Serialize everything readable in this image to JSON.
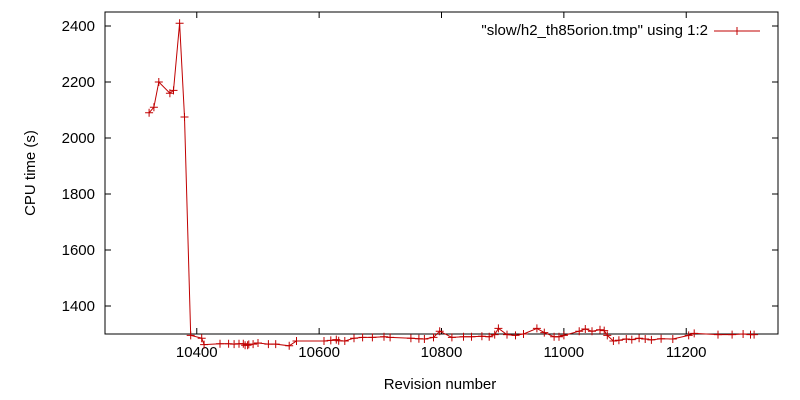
{
  "chart_data": {
    "type": "line",
    "xlabel": "Revision number",
    "ylabel": "CPU time (s)",
    "xlim": [
      10250,
      11350
    ],
    "ylim": [
      1300,
      2450
    ],
    "xticks": [
      10400,
      10600,
      10800,
      11000,
      11200
    ],
    "yticks": [
      1400,
      1600,
      1800,
      2000,
      2200,
      2400
    ],
    "grid": false,
    "legend_position": "top-right",
    "series": [
      {
        "name": "\"slow/h2_th85orion.tmp\" using 1:2",
        "color": "#c00000",
        "marker": "plus",
        "x": [
          10322,
          10330,
          10338,
          10356,
          10362,
          10372,
          10380,
          10390,
          10408,
          10412,
          10438,
          10452,
          10461,
          10469,
          10476,
          10479,
          10483,
          10485,
          10492,
          10500,
          10517,
          10529,
          10551,
          10563,
          10608,
          10619,
          10628,
          10632,
          10642,
          10657,
          10671,
          10687,
          10706,
          10716,
          10750,
          10763,
          10772,
          10787,
          10797,
          10817,
          10836,
          10849,
          10866,
          10878,
          10887,
          10893,
          10907,
          10921,
          10934,
          10956,
          10968,
          10984,
          10992,
          11000,
          11025,
          11035,
          11046,
          11059,
          11066,
          11071,
          11081,
          11090,
          11102,
          11111,
          11123,
          11133,
          11143,
          11159,
          11178,
          11204,
          11213,
          11252,
          11275,
          11293,
          11305,
          11311
        ],
        "y": [
          2090,
          2110,
          2200,
          2160,
          2170,
          2410,
          2075,
          1295,
          1285,
          1262,
          1265,
          1265,
          1264,
          1265,
          1265,
          1260,
          1260,
          1263,
          1264,
          1268,
          1264,
          1264,
          1258,
          1275,
          1275,
          1277,
          1280,
          1276,
          1275,
          1285,
          1288,
          1288,
          1290,
          1288,
          1285,
          1283,
          1282,
          1288,
          1310,
          1288,
          1290,
          1290,
          1292,
          1290,
          1298,
          1320,
          1298,
          1295,
          1300,
          1320,
          1305,
          1290,
          1290,
          1295,
          1310,
          1318,
          1310,
          1315,
          1312,
          1295,
          1275,
          1278,
          1282,
          1280,
          1285,
          1282,
          1279,
          1283,
          1282,
          1295,
          1302,
          1298,
          1298,
          1300,
          1298,
          1298
        ]
      }
    ]
  }
}
